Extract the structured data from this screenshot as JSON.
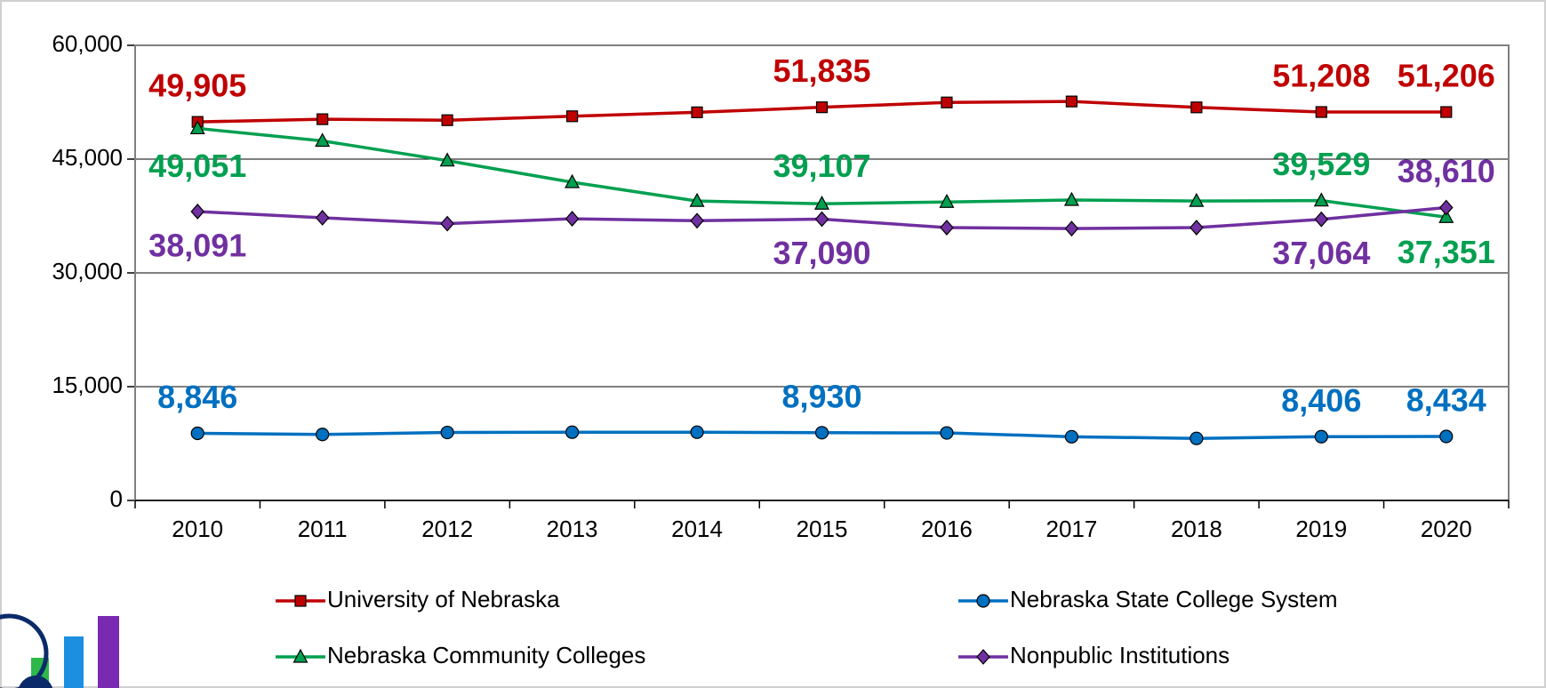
{
  "chart_data": {
    "type": "line",
    "categories": [
      "2010",
      "2011",
      "2012",
      "2013",
      "2014",
      "2015",
      "2016",
      "2017",
      "2018",
      "2019",
      "2020"
    ],
    "ylim": [
      0,
      60000
    ],
    "yticks": [
      0,
      {
        "value": 15000,
        "label": "15,000"
      },
      {
        "value": 30000,
        "label": "30,000"
      },
      {
        "value": 45000,
        "label": "45,000"
      },
      {
        "value": 60000,
        "label": "60,000"
      }
    ],
    "grid": true,
    "series": [
      {
        "name": "University of Nebraska",
        "color": "#c00000",
        "values": [
          49905,
          50260,
          50130,
          50650,
          51170,
          51835,
          52470,
          52600,
          51820,
          51208,
          51206
        ],
        "value_labels": [
          "49,905",
          null,
          null,
          null,
          null,
          "51,835",
          null,
          null,
          null,
          "51,208",
          "51,206"
        ]
      },
      {
        "name": "Nebraska State College System",
        "color": "#0070c0",
        "values": [
          8846,
          8700,
          8960,
          9000,
          9000,
          8930,
          8900,
          8400,
          8180,
          8406,
          8434
        ],
        "value_labels": [
          "8,846",
          null,
          null,
          null,
          null,
          "8,930",
          null,
          null,
          null,
          "8,406",
          "8,434"
        ]
      },
      {
        "name": "Nebraska Community Colleges",
        "color": "#00a050",
        "values": [
          49051,
          47400,
          44800,
          41950,
          39480,
          39107,
          39350,
          39610,
          39480,
          39529,
          37351
        ],
        "value_labels": [
          "49,051",
          null,
          null,
          null,
          null,
          "39,107",
          null,
          null,
          null,
          "39,529",
          "37,351"
        ]
      },
      {
        "name": "Nonpublic Institutions",
        "color": "#7030a0",
        "values": [
          38091,
          37270,
          36490,
          37140,
          36880,
          37090,
          35970,
          35840,
          35970,
          37064,
          38610
        ],
        "value_labels": [
          "38,091",
          null,
          null,
          null,
          null,
          "37,090",
          null,
          null,
          null,
          "37,064",
          "38,610"
        ]
      }
    ]
  }
}
